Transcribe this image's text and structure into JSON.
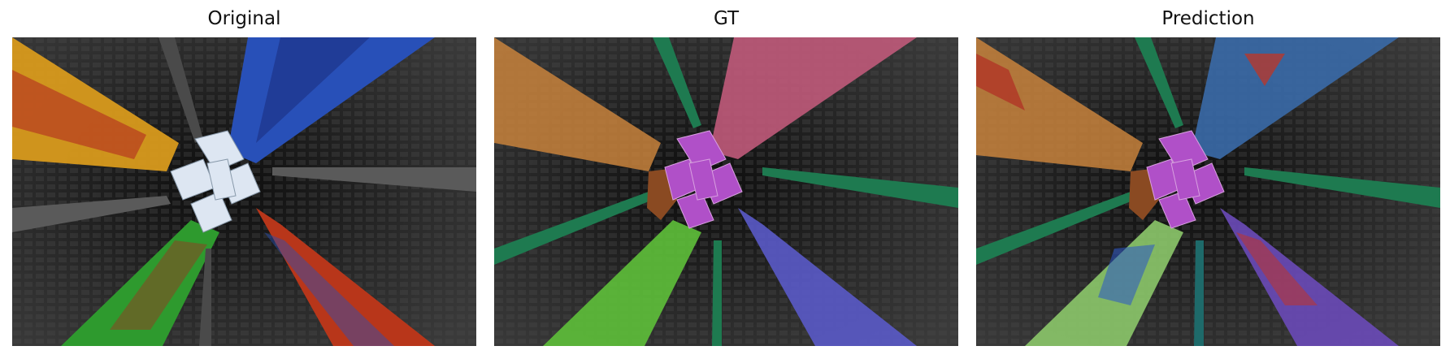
{
  "figure": {
    "panels": [
      {
        "title": "Original"
      },
      {
        "title": "GT"
      },
      {
        "title": "Prediction"
      }
    ]
  },
  "colors": {
    "background": "#ffffff",
    "dome_dark": "#1a1a1a",
    "rib_gray": "#555555",
    "stained_yellow": "#e0a020",
    "stained_blue": "#2a55c8",
    "stained_green": "#3fa83a",
    "stained_red": "#c8321e",
    "center_white": "#e6eef8",
    "seg_orange": "#c8823c",
    "seg_pink": "#c05a7a",
    "seg_green": "#5ec03a",
    "seg_blue": "#5a5ac8",
    "seg_purple": "#b050c8",
    "seg_teal": "#1e7a50",
    "seg_brown": "#8a4a22",
    "pred_cyan_blue": "#3a6aa8"
  }
}
